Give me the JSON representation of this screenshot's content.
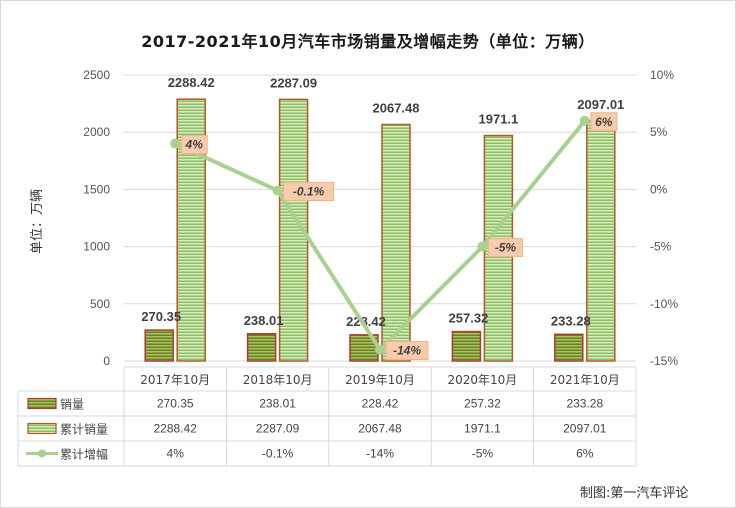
{
  "chart_data": {
    "type": "bar",
    "title": "2017-2021年10月汽车市场销量及增幅走势（单位：万辆）",
    "ylabel": "单位：万辆",
    "categories": [
      "2017年10月",
      "2018年10月",
      "2019年10月",
      "2020年10月",
      "2021年10月"
    ],
    "series": [
      {
        "name": "销量",
        "type": "bar",
        "axis": "left",
        "values": [
          270.35,
          238.01,
          228.42,
          257.32,
          233.28
        ],
        "labels": [
          "270.35",
          "238.01",
          "228.42",
          "257.32",
          "233.28"
        ],
        "color": "#c0392b"
      },
      {
        "name": "累计销量",
        "type": "bar",
        "axis": "left",
        "values": [
          2288.42,
          2287.09,
          2067.48,
          1971.1,
          2097.01
        ],
        "labels": [
          "2288.42",
          "2287.09",
          "2067.48",
          "1971.1",
          "2097.01"
        ],
        "color": "#70ad47"
      },
      {
        "name": "累计增幅",
        "type": "line",
        "axis": "right",
        "values": [
          4,
          -0.1,
          -14,
          -5,
          6
        ],
        "labels": [
          "4%",
          "-0.1%",
          "-14%",
          "-5%",
          "6%"
        ],
        "color": "#a9d08e"
      }
    ],
    "ylim": [
      0,
      2500
    ],
    "yticks": [
      "0",
      "500",
      "1000",
      "1500",
      "2000",
      "2500"
    ],
    "y2lim": [
      -15,
      10
    ],
    "y2ticks": [
      "-15%",
      "-10%",
      "-5%",
      "0%",
      "5%",
      "10%"
    ],
    "grid": true,
    "data_table": true
  },
  "credit": "制图:第一汽车评论"
}
